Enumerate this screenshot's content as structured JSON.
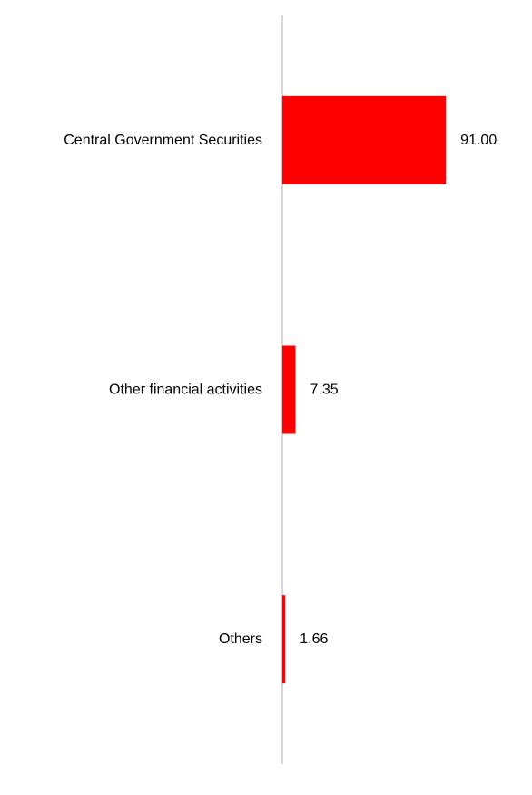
{
  "chart_data": {
    "type": "bar",
    "orientation": "horizontal",
    "title": "",
    "xlabel": "",
    "ylabel": "",
    "categories": [
      "Central Government Securities",
      "Other financial activities",
      "Others"
    ],
    "values": [
      91.0,
      7.35,
      1.66
    ],
    "value_labels": [
      "91.00",
      "7.35",
      "1.66"
    ],
    "xlim": [
      0,
      100
    ],
    "bar_color": "#ff0000",
    "axis_color": "#c8c8c8",
    "grid": false,
    "legend": "none"
  }
}
